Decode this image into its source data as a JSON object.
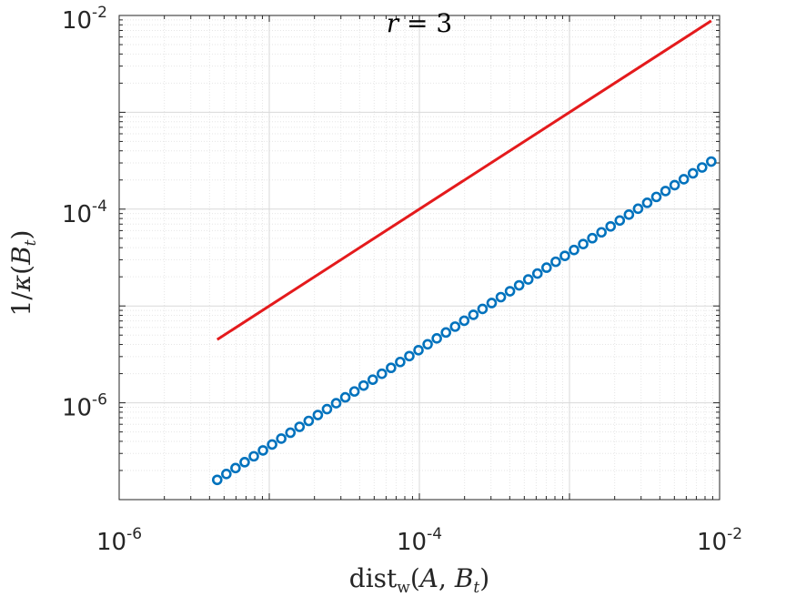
{
  "chart_data": {
    "type": "line",
    "title": "r = 3",
    "xlabel": "dist_w(A, B_t)",
    "ylabel": "1/κ(B_t)",
    "x_scale": "log",
    "y_scale": "log",
    "xlim": [
      1e-06,
      0.01
    ],
    "ylim": [
      1e-07,
      0.01
    ],
    "x_ticks": [
      {
        "base": "10",
        "exp": "-6",
        "value": 1e-06
      },
      {
        "base": "10",
        "exp": "-4",
        "value": 0.0001
      },
      {
        "base": "10",
        "exp": "-2",
        "value": 0.01
      }
    ],
    "y_ticks": [
      {
        "base": "10",
        "exp": "-6",
        "value": 1e-06
      },
      {
        "base": "10",
        "exp": "-4",
        "value": 0.0001
      },
      {
        "base": "10",
        "exp": "-2",
        "value": 0.01
      }
    ],
    "grid": true,
    "minor_grid": true,
    "legend": "none",
    "series": [
      {
        "style": "line",
        "color": "#e41a1c",
        "x_range": [
          4.5e-06,
          0.0088
        ],
        "y_range": [
          4.5e-06,
          0.0088
        ],
        "n_points": 2
      },
      {
        "style": "markers",
        "marker": "circle-open",
        "color": "#0072bd",
        "x_range": [
          4.5e-06,
          0.0088
        ],
        "y_range": [
          1.6e-07,
          0.00031
        ],
        "n_points": 55
      }
    ]
  }
}
